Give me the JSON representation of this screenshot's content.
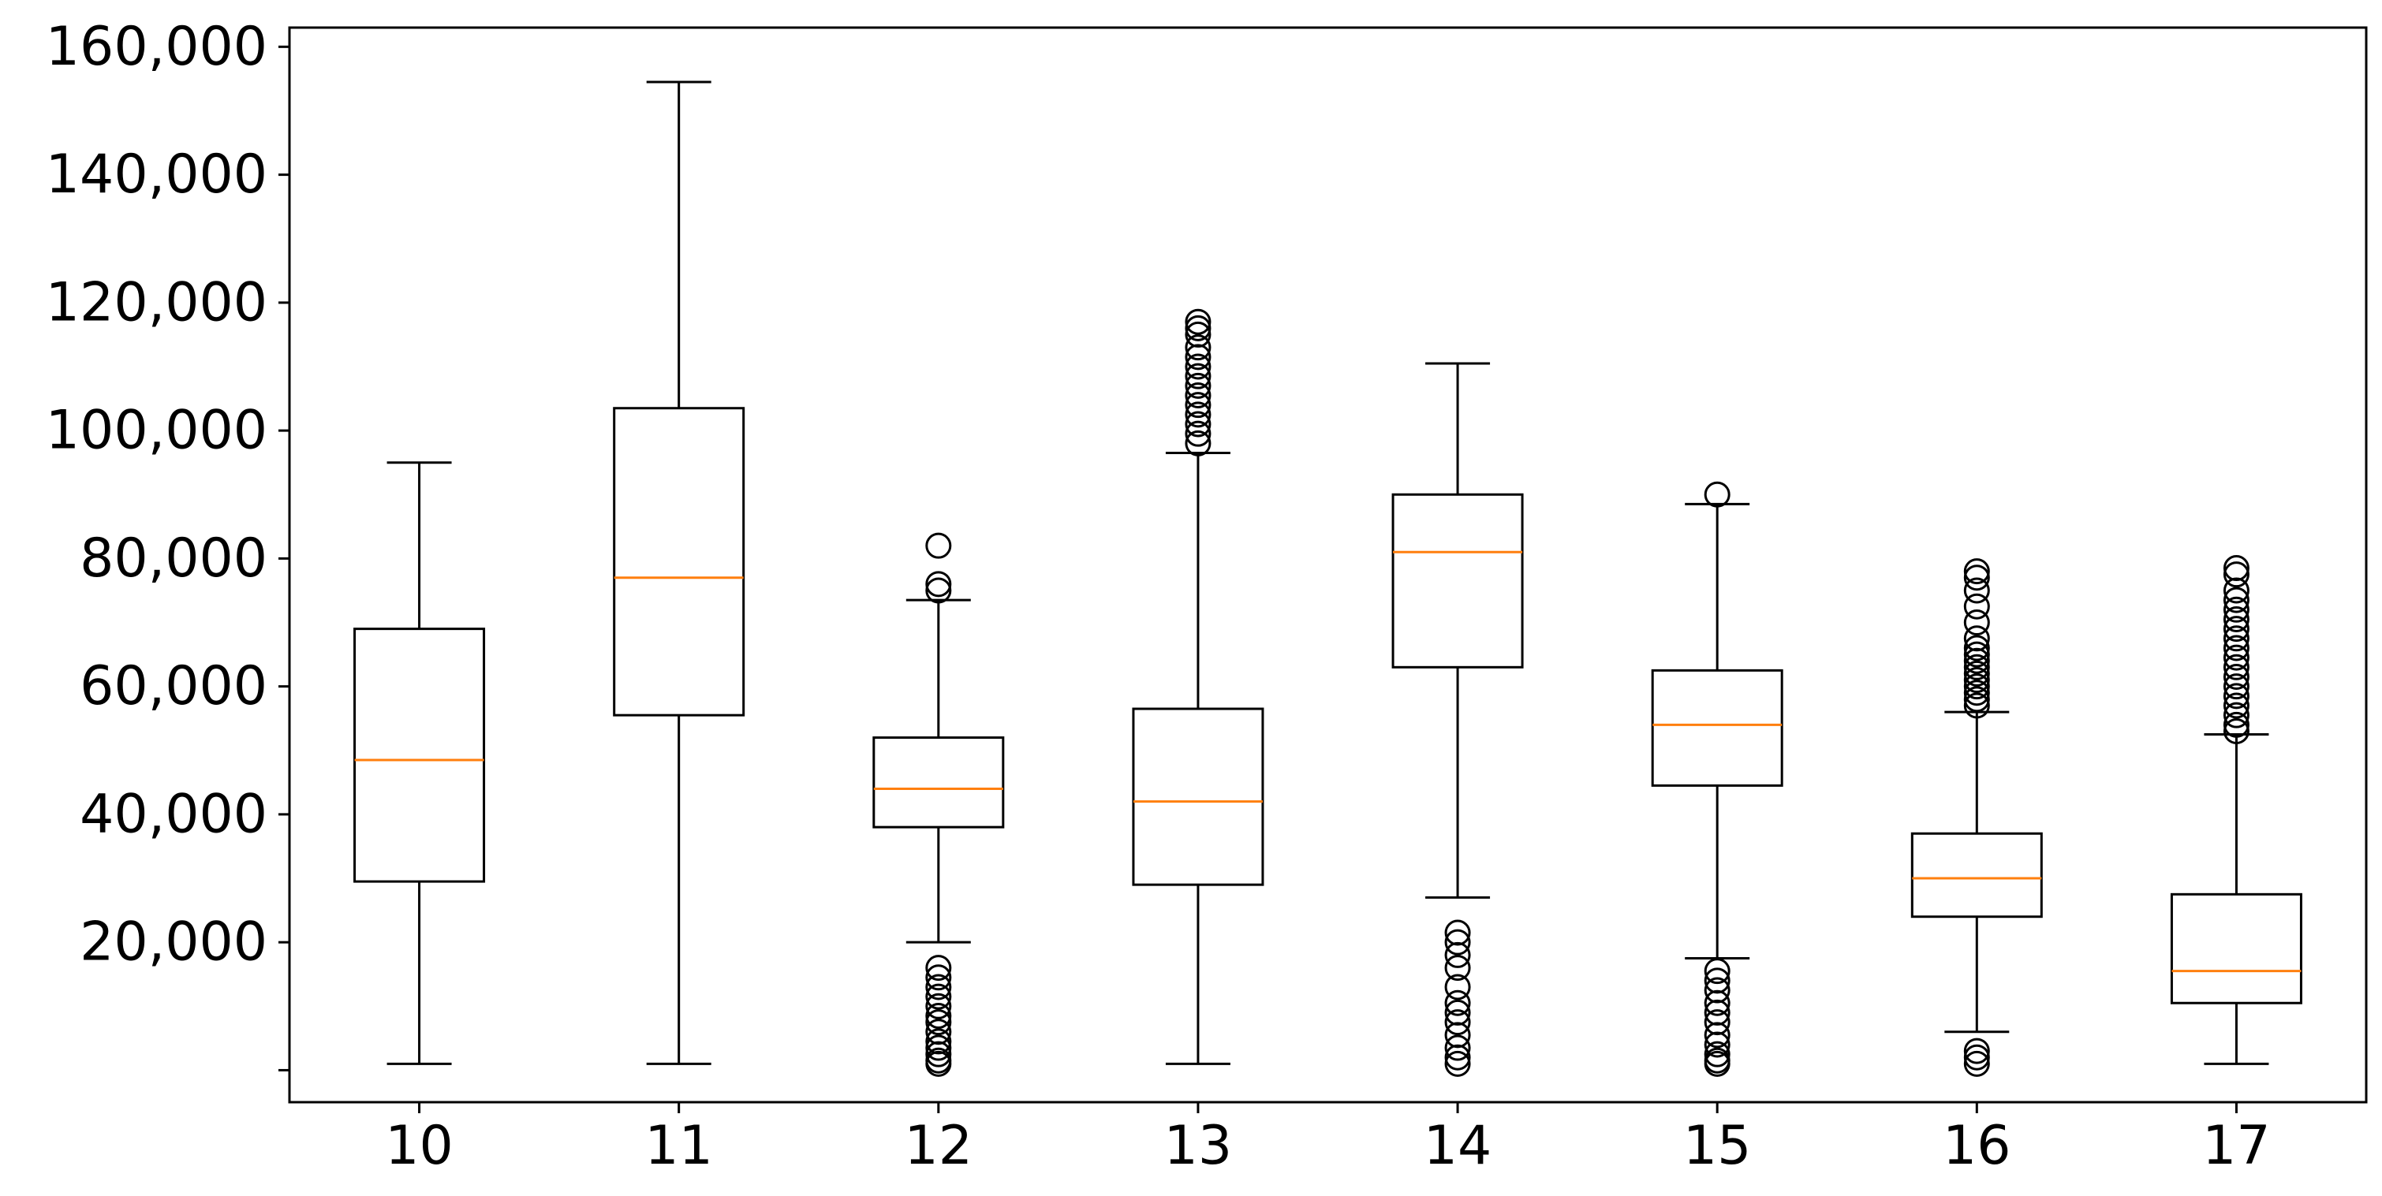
{
  "chart_data": {
    "type": "box",
    "title": "",
    "xlabel": "",
    "ylabel": "",
    "ylim": [
      -5000,
      163000
    ],
    "yticks": [
      0,
      20000,
      40000,
      60000,
      80000,
      100000,
      120000,
      140000,
      160000
    ],
    "ytick_labels": [
      "",
      "20,000",
      "40,000",
      "60,000",
      "80,000",
      "100,000",
      "120,000",
      "140,000",
      "160,000"
    ],
    "categories": [
      "10",
      "11",
      "12",
      "13",
      "14",
      "15",
      "16",
      "17"
    ],
    "grid": false,
    "median_color": "#ff7f0e",
    "box_color": "#000000",
    "boxes": [
      {
        "label": "10",
        "whisker_low": 1000,
        "q1": 29500,
        "median": 48500,
        "q3": 69000,
        "whisker_high": 95000,
        "outliers": []
      },
      {
        "label": "11",
        "whisker_low": 1000,
        "q1": 55500,
        "median": 77000,
        "q3": 103500,
        "whisker_high": 154500,
        "outliers": []
      },
      {
        "label": "12",
        "whisker_low": 20000,
        "q1": 38000,
        "median": 44000,
        "q3": 52000,
        "whisker_high": 73500,
        "outliers": [
          82000,
          76000,
          75000,
          16000,
          14500,
          13000,
          11500,
          10000,
          8500,
          7500,
          6000,
          4500,
          3500,
          2500,
          1500,
          1000
        ]
      },
      {
        "label": "13",
        "whisker_low": 1000,
        "q1": 29000,
        "median": 42000,
        "q3": 56500,
        "whisker_high": 96500,
        "outliers": [
          117000,
          116000,
          115000,
          113000,
          111500,
          110000,
          108500,
          107000,
          105500,
          104000,
          102500,
          101000,
          99500,
          98000
        ]
      },
      {
        "label": "14",
        "whisker_low": 27000,
        "q1": 63000,
        "median": 81000,
        "q3": 90000,
        "whisker_high": 110500,
        "outliers": [
          21500,
          20000,
          18000,
          16000,
          13000,
          10500,
          9000,
          7500,
          5500,
          3500,
          2000,
          1000
        ]
      },
      {
        "label": "15",
        "whisker_low": 17500,
        "q1": 44500,
        "median": 54000,
        "q3": 62500,
        "whisker_high": 88500,
        "outliers": [
          90000,
          15500,
          14000,
          12500,
          10500,
          9000,
          7500,
          5500,
          4000,
          2500,
          1500,
          1000
        ]
      },
      {
        "label": "16",
        "whisker_low": 6000,
        "q1": 24000,
        "median": 30000,
        "q3": 37000,
        "whisker_high": 56000,
        "outliers": [
          78000,
          77000,
          75000,
          72500,
          70000,
          67500,
          66000,
          65000,
          64000,
          63000,
          62000,
          61000,
          60000,
          59000,
          58000,
          57000,
          3000,
          2000,
          1000
        ]
      },
      {
        "label": "17",
        "whisker_low": 1000,
        "q1": 10500,
        "median": 15500,
        "q3": 27500,
        "whisker_high": 52500,
        "outliers": [
          78500,
          77500,
          75000,
          73500,
          72000,
          70500,
          69000,
          67500,
          66000,
          64500,
          63000,
          61500,
          60000,
          58500,
          57000,
          55500,
          54000,
          53000
        ]
      }
    ]
  }
}
